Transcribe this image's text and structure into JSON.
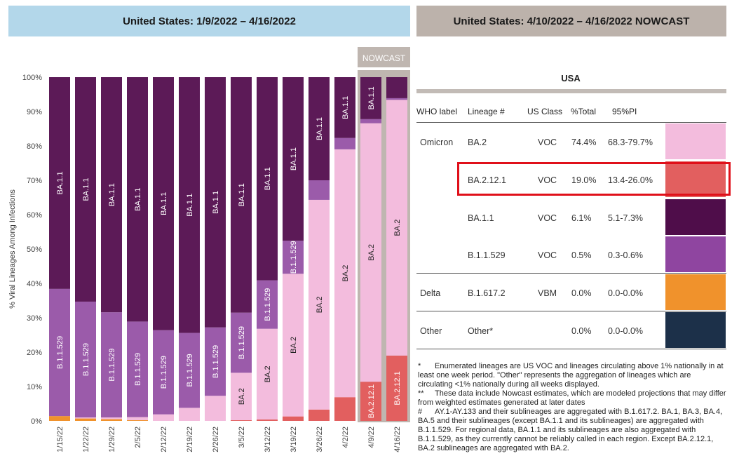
{
  "headers": {
    "left": "United States: 1/9/2022 – 4/16/2022",
    "right": "United States: 4/10/2022 – 4/16/2022 NOWCAST"
  },
  "chart_data": {
    "type": "bar",
    "stacked": true,
    "ylabel": "% Viral Lineages Among Infections",
    "ylim": [
      0,
      100
    ],
    "yticks": [
      "0%",
      "10%",
      "20%",
      "30%",
      "40%",
      "50%",
      "60%",
      "70%",
      "80%",
      "90%",
      "100%"
    ],
    "nowcast_label": "NOWCAST",
    "nowcast_categories": [
      "4/9/22",
      "4/16/22"
    ],
    "categories": [
      "1/15/22",
      "1/22/22",
      "1/29/22",
      "2/5/22",
      "2/12/22",
      "2/19/22",
      "2/26/22",
      "3/5/22",
      "3/12/22",
      "3/19/22",
      "3/26/22",
      "4/2/22",
      "4/9/22",
      "4/16/22"
    ],
    "series": [
      {
        "name": "Other",
        "color": "#1c3049",
        "values": [
          0,
          0,
          0,
          0,
          0,
          0,
          0,
          0,
          0,
          0,
          0,
          0,
          0,
          0
        ]
      },
      {
        "name": "B.1.617.2",
        "color": "#f0922c",
        "values": [
          1.4,
          0.7,
          0.5,
          0.2,
          0,
          0,
          0,
          0,
          0,
          0,
          0,
          0,
          0,
          0
        ]
      },
      {
        "name": "BA.2.12.1",
        "color": "#e25f5f",
        "values": [
          0,
          0,
          0,
          0,
          0,
          0,
          0,
          0.2,
          0.4,
          1.3,
          3.3,
          6.9,
          11.4,
          19.0
        ]
      },
      {
        "name": "BA.2",
        "color": "#f3bcdd",
        "values": [
          0,
          0.3,
          0.5,
          0.9,
          1.9,
          3.8,
          7.3,
          13.8,
          26.4,
          41.5,
          61.0,
          72.1,
          75.2,
          74.4
        ]
      },
      {
        "name": "B.1.1.529",
        "color": "#9b5baa",
        "values": [
          37.0,
          33.7,
          30.6,
          27.8,
          24.5,
          21.8,
          19.9,
          17.5,
          14.1,
          9.6,
          5.7,
          3.3,
          1.2,
          0.5
        ]
      },
      {
        "name": "BA.1.1",
        "color": "#5c1a57",
        "values": [
          61.6,
          65.3,
          68.4,
          71.1,
          73.6,
          74.4,
          72.8,
          68.5,
          59.1,
          47.6,
          30.0,
          17.7,
          12.2,
          6.1
        ]
      }
    ]
  },
  "table": {
    "title": "USA",
    "columns": [
      "WHO label",
      "Lineage #",
      "US Class",
      "%Total",
      "95%PI"
    ],
    "rows": [
      {
        "who": "Omicron",
        "lineage": "BA.2",
        "cls": "VOC",
        "total": "74.4%",
        "pi": "68.3-79.7%",
        "color": "#f3bcdd"
      },
      {
        "who": "",
        "lineage": "BA.2.12.1",
        "cls": "VOC",
        "total": "19.0%",
        "pi": "13.4-26.0%",
        "color": "#e25f5f"
      },
      {
        "who": "",
        "lineage": "BA.1.1",
        "cls": "VOC",
        "total": "6.1%",
        "pi": "5.1-7.3%",
        "color": "#4f0d4a"
      },
      {
        "who": "",
        "lineage": "B.1.1.529",
        "cls": "VOC",
        "total": "0.5%",
        "pi": "0.3-0.6%",
        "color": "#8f45a0"
      },
      {
        "who": "Delta",
        "lineage": "B.1.617.2",
        "cls": "VBM",
        "total": "0.0%",
        "pi": "0.0-0.0%",
        "color": "#f0922c"
      },
      {
        "who": "Other",
        "lineage": "Other*",
        "cls": "",
        "total": "0.0%",
        "pi": "0.0-0.0%",
        "color": "#1c3049"
      }
    ]
  },
  "footnotes": [
    {
      "mark": "*",
      "text": "Enumerated lineages are US VOC and lineages circulating above 1% nationally in at least one week period. \"Other\" represents the aggregation of lineages which are circulating <1% nationally during all weeks displayed."
    },
    {
      "mark": "**",
      "text": "These data include Nowcast estimates, which are modeled projections that may differ from weighted estimates generated at later dates"
    },
    {
      "mark": "#",
      "text": "AY.1-AY.133 and their sublineages are aggregated with B.1.617.2. BA.1, BA.3, BA.4, BA.5 and their sublineages (except BA.1.1 and its sublineages) are aggregated with B.1.1.529. For regional data, BA.1.1 and its sublineages are also aggregated with B.1.1.529, as they currently cannot be reliably called in each region. Except BA.2.12.1, BA.2 sublineages are aggregated with BA.2."
    }
  ]
}
